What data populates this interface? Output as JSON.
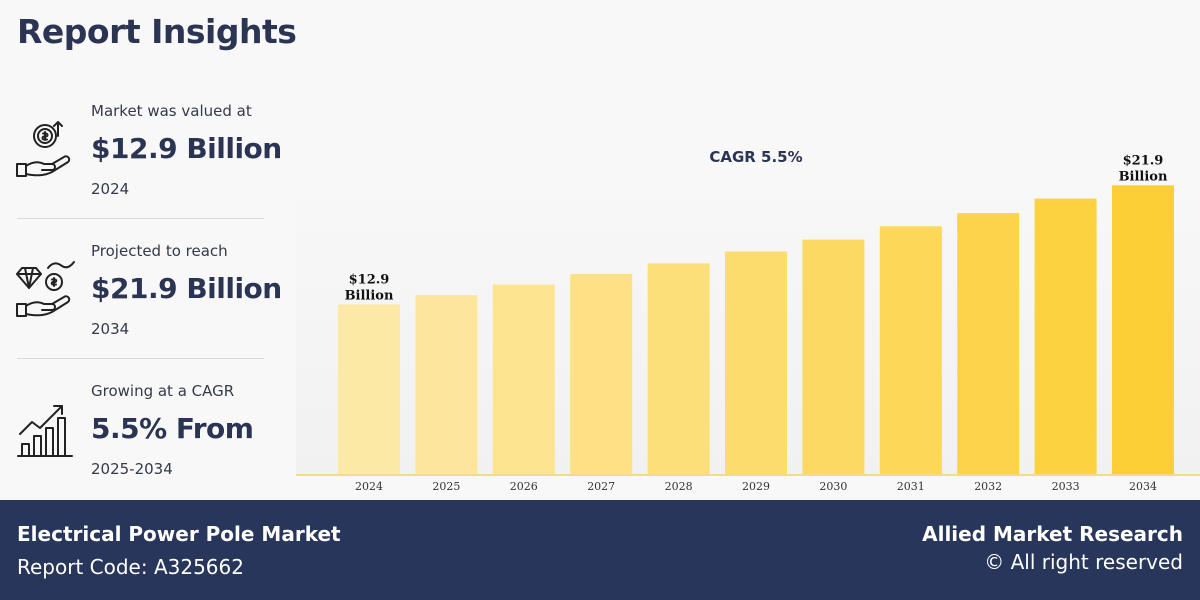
{
  "header": {
    "title": "Report Insights"
  },
  "stats": [
    {
      "label": "Market was valued at",
      "value": "$12.9 Billion",
      "sub": "2024",
      "icon": "money-hand-icon"
    },
    {
      "label": "Projected to reach",
      "value": "$21.9 Billion",
      "sub": "2034",
      "icon": "diamond-hand-icon"
    },
    {
      "label": "Growing at a CAGR",
      "value": "5.5% From",
      "sub": "2025-2034",
      "icon": "growth-chart-icon"
    }
  ],
  "chart_data": {
    "type": "bar",
    "title": "CAGR 5.5%",
    "categories": [
      "2024",
      "2025",
      "2026",
      "2027",
      "2028",
      "2029",
      "2030",
      "2031",
      "2032",
      "2033",
      "2034"
    ],
    "values": [
      12.9,
      13.6,
      14.4,
      15.2,
      16.0,
      16.9,
      17.8,
      18.8,
      19.8,
      20.9,
      21.9
    ],
    "unit": "Billion",
    "ylim": [
      0,
      22
    ],
    "data_labels": [
      {
        "index": 0,
        "line1": "$12.9",
        "line2": "Billion"
      },
      {
        "index": 10,
        "line1": "$21.9",
        "line2": "Billion"
      }
    ],
    "colors": {
      "bar_start": "#fde9a6",
      "bar_end": "#fccf36",
      "axis": "#f1dc8c",
      "title": "#2b3452"
    }
  },
  "footer": {
    "market_name": "Electrical Power Pole Market",
    "report_code": "Report Code: A325662",
    "brand": "Allied Market Research",
    "rights": "© All right reserved"
  }
}
